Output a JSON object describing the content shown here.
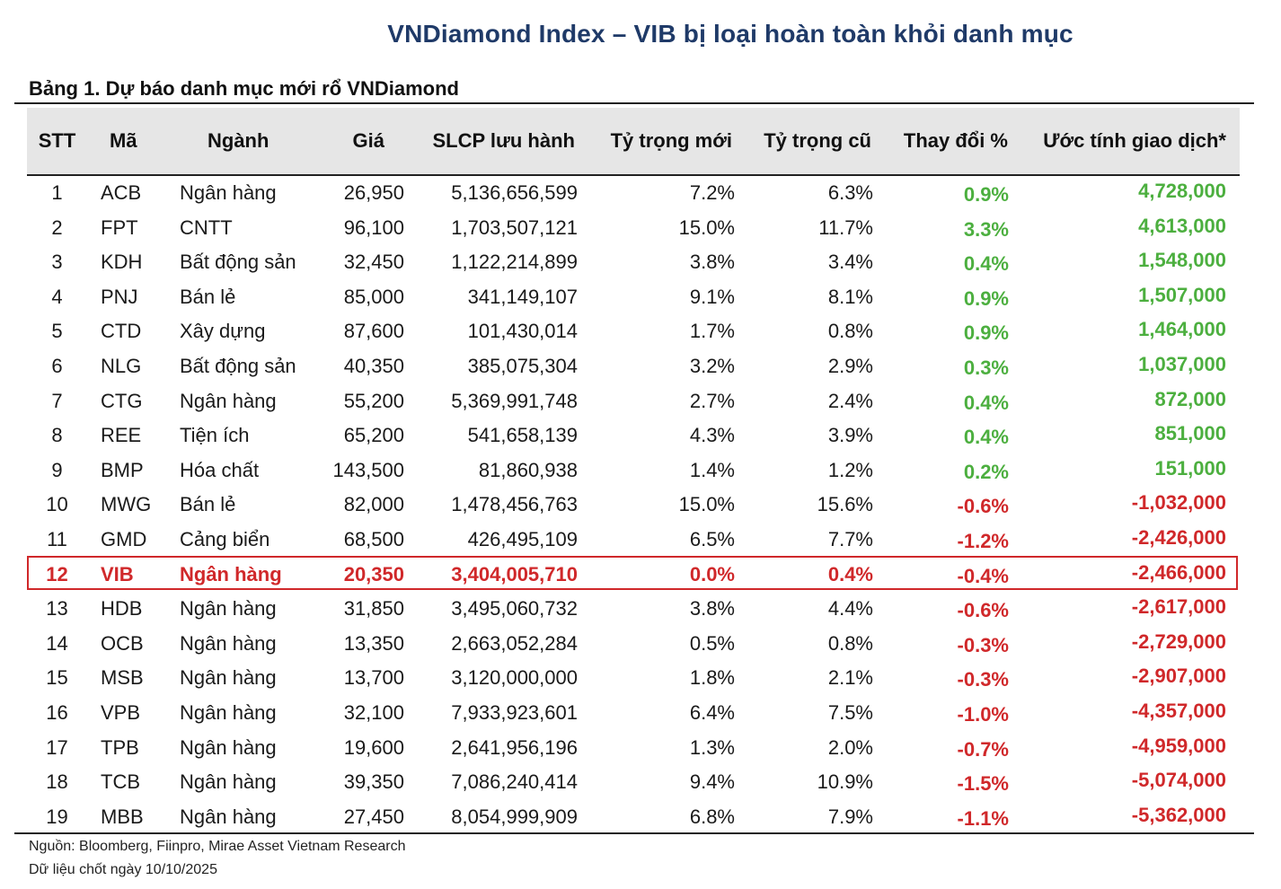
{
  "title": "VNDiamond Index – VIB bị loại hoàn toàn khỏi danh mục",
  "subtitle": "Bảng 1. Dự báo danh mục mới rổ VNDiamond",
  "columns": {
    "stt": "STT",
    "ma": "Mã",
    "nganh": "Ngành",
    "gia": "Giá",
    "slcp": "SLCP lưu hành",
    "ty_trong_moi": "Tỷ trọng mới",
    "ty_trong_cu": "Tỷ trọng cũ",
    "thay_doi": "Thay đổi %",
    "uoc_tinh": "Ước tính giao dịch*"
  },
  "colors": {
    "title": "#1f3a68",
    "positive": "#4caf3f",
    "negative": "#d0282a",
    "highlight": "#d0282a",
    "header_bg": "#e6e6e6"
  },
  "rows": [
    {
      "stt": "1",
      "ma": "ACB",
      "nganh": "Ngân hàng",
      "gia": "26,950",
      "slcp": "5,136,656,599",
      "moi": "7.2%",
      "cu": "6.3%",
      "thay_doi": "0.9%",
      "uoc_tinh": "4,728,000",
      "sign": "pos"
    },
    {
      "stt": "2",
      "ma": "FPT",
      "nganh": "CNTT",
      "gia": "96,100",
      "slcp": "1,703,507,121",
      "moi": "15.0%",
      "cu": "11.7%",
      "thay_doi": "3.3%",
      "uoc_tinh": "4,613,000",
      "sign": "pos"
    },
    {
      "stt": "3",
      "ma": "KDH",
      "nganh": "Bất động sản",
      "gia": "32,450",
      "slcp": "1,122,214,899",
      "moi": "3.8%",
      "cu": "3.4%",
      "thay_doi": "0.4%",
      "uoc_tinh": "1,548,000",
      "sign": "pos"
    },
    {
      "stt": "4",
      "ma": "PNJ",
      "nganh": "Bán lẻ",
      "gia": "85,000",
      "slcp": "341,149,107",
      "moi": "9.1%",
      "cu": "8.1%",
      "thay_doi": "0.9%",
      "uoc_tinh": "1,507,000",
      "sign": "pos"
    },
    {
      "stt": "5",
      "ma": "CTD",
      "nganh": "Xây dựng",
      "gia": "87,600",
      "slcp": "101,430,014",
      "moi": "1.7%",
      "cu": "0.8%",
      "thay_doi": "0.9%",
      "uoc_tinh": "1,464,000",
      "sign": "pos"
    },
    {
      "stt": "6",
      "ma": "NLG",
      "nganh": "Bất động sản",
      "gia": "40,350",
      "slcp": "385,075,304",
      "moi": "3.2%",
      "cu": "2.9%",
      "thay_doi": "0.3%",
      "uoc_tinh": "1,037,000",
      "sign": "pos"
    },
    {
      "stt": "7",
      "ma": "CTG",
      "nganh": "Ngân hàng",
      "gia": "55,200",
      "slcp": "5,369,991,748",
      "moi": "2.7%",
      "cu": "2.4%",
      "thay_doi": "0.4%",
      "uoc_tinh": "872,000",
      "sign": "pos"
    },
    {
      "stt": "8",
      "ma": "REE",
      "nganh": "Tiện ích",
      "gia": "65,200",
      "slcp": "541,658,139",
      "moi": "4.3%",
      "cu": "3.9%",
      "thay_doi": "0.4%",
      "uoc_tinh": "851,000",
      "sign": "pos"
    },
    {
      "stt": "9",
      "ma": "BMP",
      "nganh": "Hóa chất",
      "gia": "143,500",
      "slcp": "81,860,938",
      "moi": "1.4%",
      "cu": "1.2%",
      "thay_doi": "0.2%",
      "uoc_tinh": "151,000",
      "sign": "pos"
    },
    {
      "stt": "10",
      "ma": "MWG",
      "nganh": "Bán lẻ",
      "gia": "82,000",
      "slcp": "1,478,456,763",
      "moi": "15.0%",
      "cu": "15.6%",
      "thay_doi": "-0.6%",
      "uoc_tinh": "-1,032,000",
      "sign": "neg"
    },
    {
      "stt": "11",
      "ma": "GMD",
      "nganh": "Cảng biển",
      "gia": "68,500",
      "slcp": "426,495,109",
      "moi": "6.5%",
      "cu": "7.7%",
      "thay_doi": "-1.2%",
      "uoc_tinh": "-2,426,000",
      "sign": "neg"
    },
    {
      "stt": "12",
      "ma": "VIB",
      "nganh": "Ngân hàng",
      "gia": "20,350",
      "slcp": "3,404,005,710",
      "moi": "0.0%",
      "cu": "0.4%",
      "thay_doi": "-0.4%",
      "uoc_tinh": "-2,466,000",
      "sign": "neg",
      "highlight": true
    },
    {
      "stt": "13",
      "ma": "HDB",
      "nganh": "Ngân hàng",
      "gia": "31,850",
      "slcp": "3,495,060,732",
      "moi": "3.8%",
      "cu": "4.4%",
      "thay_doi": "-0.6%",
      "uoc_tinh": "-2,617,000",
      "sign": "neg"
    },
    {
      "stt": "14",
      "ma": "OCB",
      "nganh": "Ngân hàng",
      "gia": "13,350",
      "slcp": "2,663,052,284",
      "moi": "0.5%",
      "cu": "0.8%",
      "thay_doi": "-0.3%",
      "uoc_tinh": "-2,729,000",
      "sign": "neg"
    },
    {
      "stt": "15",
      "ma": "MSB",
      "nganh": "Ngân hàng",
      "gia": "13,700",
      "slcp": "3,120,000,000",
      "moi": "1.8%",
      "cu": "2.1%",
      "thay_doi": "-0.3%",
      "uoc_tinh": "-2,907,000",
      "sign": "neg"
    },
    {
      "stt": "16",
      "ma": "VPB",
      "nganh": "Ngân hàng",
      "gia": "32,100",
      "slcp": "7,933,923,601",
      "moi": "6.4%",
      "cu": "7.5%",
      "thay_doi": "-1.0%",
      "uoc_tinh": "-4,357,000",
      "sign": "neg"
    },
    {
      "stt": "17",
      "ma": "TPB",
      "nganh": "Ngân hàng",
      "gia": "19,600",
      "slcp": "2,641,956,196",
      "moi": "1.3%",
      "cu": "2.0%",
      "thay_doi": "-0.7%",
      "uoc_tinh": "-4,959,000",
      "sign": "neg"
    },
    {
      "stt": "18",
      "ma": "TCB",
      "nganh": "Ngân hàng",
      "gia": "39,350",
      "slcp": "7,086,240,414",
      "moi": "9.4%",
      "cu": "10.9%",
      "thay_doi": "-1.5%",
      "uoc_tinh": "-5,074,000",
      "sign": "neg"
    },
    {
      "stt": "19",
      "ma": "MBB",
      "nganh": "Ngân hàng",
      "gia": "27,450",
      "slcp": "8,054,999,909",
      "moi": "6.8%",
      "cu": "7.9%",
      "thay_doi": "-1.1%",
      "uoc_tinh": "-5,362,000",
      "sign": "neg"
    }
  ],
  "source_note": "Nguồn: Bloomberg, Fiinpro, Mirae Asset Vietnam Research",
  "date_note": "Dữ liệu chốt ngày 10/10/2025"
}
